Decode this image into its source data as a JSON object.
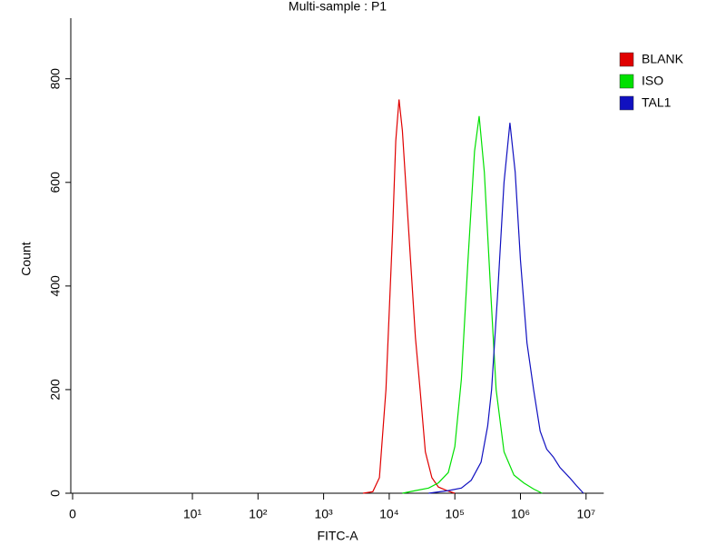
{
  "chart_data": {
    "type": "line",
    "title": "Multi-sample : P1",
    "x_label": "FITC-A",
    "y_label": "Count",
    "xscale": "biexponential",
    "xlim": [
      0,
      18600000
    ],
    "ylim": [
      0,
      917
    ],
    "xticks": [
      0,
      {
        "value": 10,
        "label": "10¹"
      },
      {
        "value": 100,
        "label": "10²"
      },
      {
        "value": 1000,
        "label": "10³"
      },
      {
        "value": 10000,
        "label": "10⁴"
      },
      {
        "value": 100000,
        "label": "10⁵"
      },
      {
        "value": 1000000,
        "label": "10⁶"
      },
      {
        "value": 10000000,
        "label": "10⁷"
      }
    ],
    "yticks": [
      0,
      200,
      400,
      600,
      800
    ],
    "legend": "right",
    "series": [
      {
        "name": "BLANK",
        "color": "#e00000",
        "x": [
          3981,
          5623,
          7079,
          8913,
          11220,
          12589,
          14125,
          15849,
          19953,
          25119,
          29512,
          35481,
          44668,
          56234,
          79433,
          100000
        ],
        "values": [
          0,
          3,
          30,
          200,
          500,
          680,
          760,
          700,
          500,
          300,
          200,
          80,
          30,
          12,
          4,
          0
        ]
      },
      {
        "name": "ISO",
        "color": "#00e000",
        "x": [
          15849,
          25119,
          39811,
          56234,
          79433,
          100000,
          125893,
          158489,
          199526,
          234423,
          281838,
          354813,
          426580,
          562341,
          794328,
          1122018,
          1584893,
          2137962
        ],
        "values": [
          0,
          5,
          10,
          20,
          40,
          90,
          220,
          450,
          660,
          728,
          620,
          380,
          200,
          80,
          35,
          20,
          8,
          0
        ]
      },
      {
        "name": "TAL1",
        "color": "#1010c0",
        "x": [
          39811,
          79433,
          125893,
          177828,
          251189,
          316228,
          363078,
          446684,
          562341,
          691831,
          831764,
          1000000,
          1258925,
          1584893,
          1995262,
          2511886,
          3162278,
          3981072,
          5623413,
          7079458,
          9120108
        ],
        "values": [
          0,
          5,
          10,
          25,
          60,
          130,
          200,
          380,
          600,
          715,
          620,
          450,
          290,
          200,
          120,
          85,
          70,
          50,
          30,
          15,
          0
        ]
      }
    ]
  }
}
